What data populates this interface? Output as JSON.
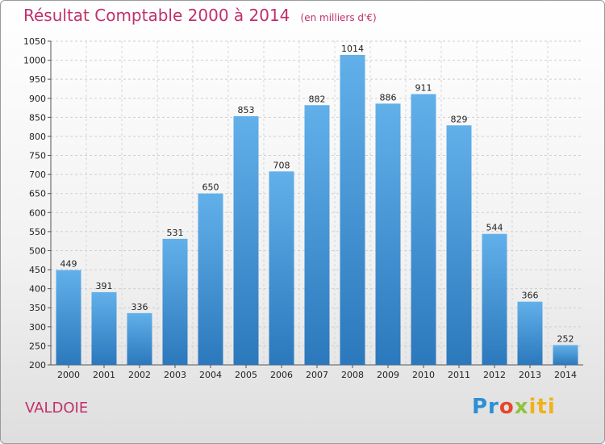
{
  "header": {
    "title": "Résultat Comptable 2000 à 2014",
    "unit": "(en milliers d'€)"
  },
  "location": "VALDOIE",
  "brand": {
    "parts": [
      "Pr",
      "o",
      "x",
      "iti"
    ]
  },
  "colors": {
    "accent": "#c0306a",
    "bar_top": "#62b0ea",
    "bar_bottom": "#2b78bc"
  },
  "chart_data": {
    "type": "bar",
    "title": "Résultat Comptable 2000 à 2014",
    "ylabel": "en milliers d'€",
    "xlabel": "",
    "categories": [
      "2000",
      "2001",
      "2002",
      "2003",
      "2004",
      "2005",
      "2006",
      "2007",
      "2008",
      "2009",
      "2010",
      "2011",
      "2012",
      "2013",
      "2014"
    ],
    "values": [
      449,
      391,
      336,
      531,
      650,
      853,
      708,
      882,
      1014,
      886,
      911,
      829,
      544,
      366,
      252
    ],
    "ylim": [
      200,
      1050
    ],
    "yticks": [
      200,
      250,
      300,
      350,
      400,
      450,
      500,
      550,
      600,
      650,
      700,
      750,
      800,
      850,
      900,
      950,
      1000,
      1050
    ],
    "grid": true,
    "legend": "none"
  }
}
